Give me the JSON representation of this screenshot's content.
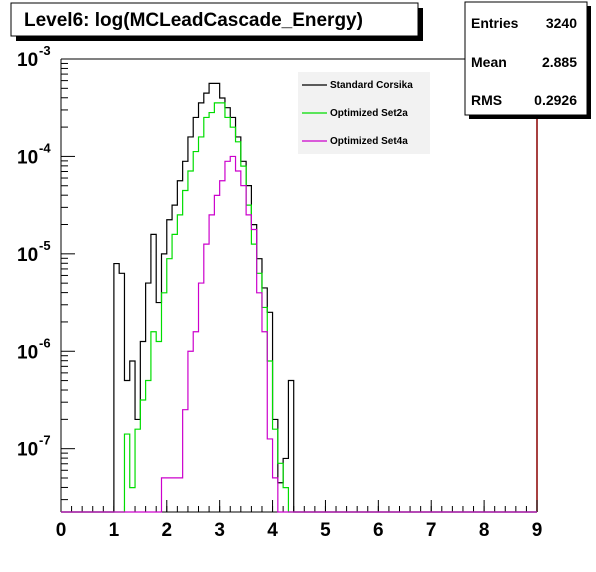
{
  "title": "Level6:  log(MCLeadCascade_Energy)",
  "stats": [
    {
      "label": "Entries",
      "value": "3240"
    },
    {
      "label": "Mean",
      "value": "2.885"
    },
    {
      "label": "RMS",
      "value": "0.2926"
    }
  ],
  "chart_data": {
    "type": "line",
    "title": "Level6:  log(MCLeadCascade_Energy)",
    "xlabel": "",
    "ylabel": "",
    "xlim": [
      0,
      9
    ],
    "ylim_log10": [
      -7.65,
      -3
    ],
    "y_scale": "log",
    "grid": false,
    "legend_position": "top-right",
    "x_ticks": [
      "0",
      "1",
      "2",
      "3",
      "4",
      "5",
      "6",
      "7",
      "8",
      "9"
    ],
    "y_ticks": [
      {
        "base": "10",
        "exp": "-3",
        "log": -3
      },
      {
        "base": "10",
        "exp": "-4",
        "log": -4
      },
      {
        "base": "10",
        "exp": "-5",
        "log": -5
      },
      {
        "base": "10",
        "exp": "-6",
        "log": -6
      },
      {
        "base": "10",
        "exp": "-7",
        "log": -7
      }
    ],
    "series": [
      {
        "name": "Standard Corsika",
        "color": "#000000",
        "bins": [
          [
            1.0,
            1.1,
            -5.1
          ],
          [
            1.1,
            1.2,
            -5.2
          ],
          [
            1.2,
            1.3,
            -6.3
          ],
          [
            1.3,
            1.4,
            -6.1
          ],
          [
            1.4,
            1.5,
            -6.7
          ],
          [
            1.5,
            1.6,
            -5.9
          ],
          [
            1.6,
            1.7,
            -5.3
          ],
          [
            1.7,
            1.8,
            -4.8
          ],
          [
            1.8,
            1.9,
            -5.5
          ],
          [
            1.9,
            2.0,
            -5.0
          ],
          [
            2.0,
            2.1,
            -4.65
          ],
          [
            2.1,
            2.2,
            -4.5
          ],
          [
            2.2,
            2.3,
            -4.25
          ],
          [
            2.3,
            2.4,
            -4.05
          ],
          [
            2.4,
            2.5,
            -3.8
          ],
          [
            2.5,
            2.6,
            -3.6
          ],
          [
            2.6,
            2.7,
            -3.45
          ],
          [
            2.7,
            2.8,
            -3.35
          ],
          [
            2.8,
            2.9,
            -3.25
          ],
          [
            2.9,
            3.0,
            -3.25
          ],
          [
            3.0,
            3.1,
            -3.4
          ],
          [
            3.1,
            3.2,
            -3.5
          ],
          [
            3.2,
            3.3,
            -3.6
          ],
          [
            3.3,
            3.4,
            -3.8
          ],
          [
            3.4,
            3.5,
            -4.05
          ],
          [
            3.5,
            3.6,
            -4.3
          ],
          [
            3.6,
            3.7,
            -4.7
          ],
          [
            3.7,
            3.8,
            -5.05
          ],
          [
            3.8,
            3.9,
            -5.35
          ],
          [
            3.9,
            4.0,
            -5.6
          ],
          [
            4.0,
            4.1,
            -6.7
          ],
          [
            4.1,
            4.2,
            -7.35
          ],
          [
            4.2,
            4.3,
            -7.1
          ],
          [
            4.3,
            4.4,
            -6.3
          ]
        ]
      },
      {
        "name": "Optimized Set2a",
        "color": "#00dd00",
        "bins": [
          [
            1.2,
            1.3,
            -6.85
          ],
          [
            1.3,
            1.4,
            -7.4
          ],
          [
            1.4,
            1.5,
            -6.8
          ],
          [
            1.5,
            1.6,
            -6.5
          ],
          [
            1.6,
            1.7,
            -6.3
          ],
          [
            1.7,
            1.8,
            -5.8
          ],
          [
            1.8,
            1.9,
            -5.9
          ],
          [
            1.9,
            2.0,
            -5.4
          ],
          [
            2.0,
            2.1,
            -5.05
          ],
          [
            2.1,
            2.2,
            -4.8
          ],
          [
            2.2,
            2.3,
            -4.6
          ],
          [
            2.3,
            2.4,
            -4.35
          ],
          [
            2.4,
            2.5,
            -4.15
          ],
          [
            2.5,
            2.6,
            -3.95
          ],
          [
            2.6,
            2.7,
            -3.8
          ],
          [
            2.7,
            2.8,
            -3.6
          ],
          [
            2.8,
            2.9,
            -3.55
          ],
          [
            2.9,
            3.0,
            -3.45
          ],
          [
            3.0,
            3.1,
            -3.45
          ],
          [
            3.1,
            3.2,
            -3.6
          ],
          [
            3.2,
            3.3,
            -3.7
          ],
          [
            3.3,
            3.4,
            -3.85
          ],
          [
            3.4,
            3.5,
            -4.1
          ],
          [
            3.5,
            3.6,
            -4.5
          ],
          [
            3.6,
            3.7,
            -4.9
          ],
          [
            3.7,
            3.8,
            -5.2
          ],
          [
            3.8,
            3.9,
            -5.55
          ],
          [
            3.9,
            4.0,
            -6.1
          ],
          [
            4.0,
            4.1,
            -6.8
          ],
          [
            4.1,
            4.2,
            -7.15
          ],
          [
            4.2,
            4.3,
            -7.4
          ]
        ]
      },
      {
        "name": "Optimized Set4a",
        "color": "#cc00cc",
        "bins": [
          [
            1.9,
            2.0,
            -7.3
          ],
          [
            2.0,
            2.1,
            -7.3
          ],
          [
            2.1,
            2.2,
            -7.3
          ],
          [
            2.2,
            2.3,
            -7.3
          ],
          [
            2.3,
            2.4,
            -6.6
          ],
          [
            2.4,
            2.5,
            -6.0
          ],
          [
            2.5,
            2.6,
            -5.8
          ],
          [
            2.6,
            2.7,
            -5.3
          ],
          [
            2.7,
            2.8,
            -4.9
          ],
          [
            2.8,
            2.9,
            -4.6
          ],
          [
            2.9,
            3.0,
            -4.4
          ],
          [
            3.0,
            3.1,
            -4.25
          ],
          [
            3.1,
            3.2,
            -4.05
          ],
          [
            3.2,
            3.3,
            -4.0
          ],
          [
            3.3,
            3.4,
            -4.15
          ],
          [
            3.4,
            3.5,
            -4.3
          ],
          [
            3.5,
            3.6,
            -4.6
          ],
          [
            3.6,
            3.7,
            -4.75
          ],
          [
            3.7,
            3.8,
            -5.4
          ],
          [
            3.8,
            3.9,
            -5.8
          ],
          [
            3.9,
            4.0,
            -6.9
          ],
          [
            4.0,
            4.1,
            -7.3
          ]
        ]
      }
    ]
  }
}
